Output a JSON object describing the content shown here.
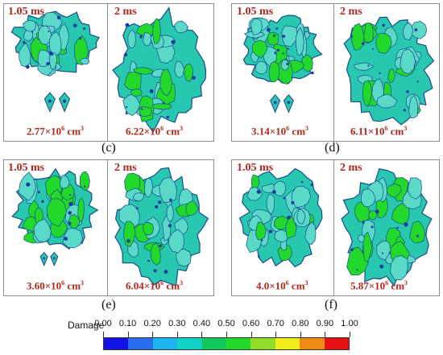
{
  "panels": [
    {
      "caption": "(c)",
      "left": {
        "time": "1.05 ms",
        "volume": "2.77×10",
        "exp": "6",
        "unit": " cm",
        "unit_exp": "3",
        "fragments": true
      },
      "right": {
        "time": "2 ms",
        "volume": "6.22×10",
        "exp": "6",
        "unit": " cm",
        "unit_exp": "3"
      }
    },
    {
      "caption": "(d)",
      "left": {
        "time": "1.05 ms",
        "volume": "3.14×10",
        "exp": "6",
        "unit": " cm",
        "unit_exp": "3",
        "fragments": true
      },
      "right": {
        "time": "2 ms",
        "volume": "6.11×10",
        "exp": "6",
        "unit": " cm",
        "unit_exp": "3"
      }
    },
    {
      "caption": "(e)",
      "left": {
        "time": "1.05 ms",
        "volume": "3.60×10",
        "exp": "6",
        "unit": " cm",
        "unit_exp": "3",
        "fragments": true
      },
      "right": {
        "time": "2 ms",
        "volume": "6.04×10",
        "exp": "6",
        "unit": " cm",
        "unit_exp": "3"
      }
    },
    {
      "caption": "(f)",
      "left": {
        "time": "1.05 ms",
        "volume": "4.0×10",
        "exp": "6",
        "unit": " cm",
        "unit_exp": "3",
        "fragments": false
      },
      "right": {
        "time": "2 ms",
        "volume": "5.87×10",
        "exp": "6",
        "unit": " cm",
        "unit_exp": "3"
      }
    }
  ],
  "legend": {
    "title": "Damage",
    "ticks": [
      "0.00",
      "0.10",
      "0.20",
      "0.30",
      "0.40",
      "0.50",
      "0.60",
      "0.70",
      "0.80",
      "0.90",
      "1.00"
    ],
    "colors": [
      "#1212e6",
      "#2a6ef0",
      "#1eb4f0",
      "#12d2c8",
      "#12c85a",
      "#22d82a",
      "#90dc28",
      "#f0ec1e",
      "#f08c14",
      "#e61212"
    ]
  },
  "colors": {
    "label": "#b3261e",
    "mesh_fill": "#28c8b0",
    "mesh_edge": "#1a4a8c",
    "damage_high": "#22d82a"
  }
}
